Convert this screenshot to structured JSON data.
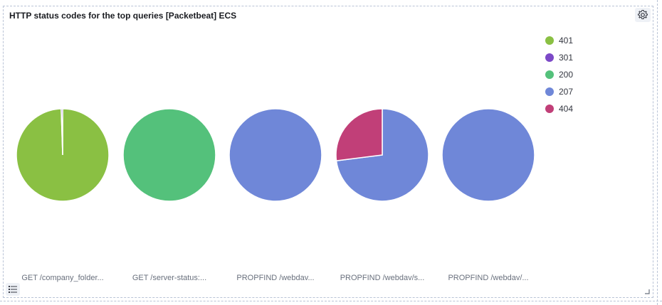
{
  "panel": {
    "title": "HTTP status codes for the top queries [Packetbeat] ECS"
  },
  "icons": {
    "options": "gear-icon",
    "legend_toggle": "list-icon",
    "resize": "resize-handle-icon"
  },
  "chart_data": {
    "type": "pie",
    "title": "HTTP status codes for the top queries [Packetbeat] ECS",
    "legend_position": "right",
    "legend": [
      {
        "label": "401",
        "color": "#8ac043"
      },
      {
        "label": "301",
        "color": "#7c49c7"
      },
      {
        "label": "200",
        "color": "#54c17b"
      },
      {
        "label": "207",
        "color": "#6f87d8"
      },
      {
        "label": "404",
        "color": "#c13f78"
      }
    ],
    "pies": [
      {
        "category": "GET /company_folder...",
        "slices": [
          {
            "status": "401",
            "value": 99.5
          },
          {
            "status": "301",
            "value": 0.5
          }
        ]
      },
      {
        "category": "GET /server-status:...",
        "slices": [
          {
            "status": "200",
            "value": 100
          }
        ]
      },
      {
        "category": "PROPFIND /webdav...",
        "slices": [
          {
            "status": "207",
            "value": 100
          }
        ]
      },
      {
        "category": "PROPFIND /webdav/s...",
        "slices": [
          {
            "status": "207",
            "value": 73
          },
          {
            "status": "404",
            "value": 27
          }
        ]
      },
      {
        "category": "PROPFIND /webdav/...",
        "slices": [
          {
            "status": "207",
            "value": 100
          }
        ]
      }
    ]
  }
}
